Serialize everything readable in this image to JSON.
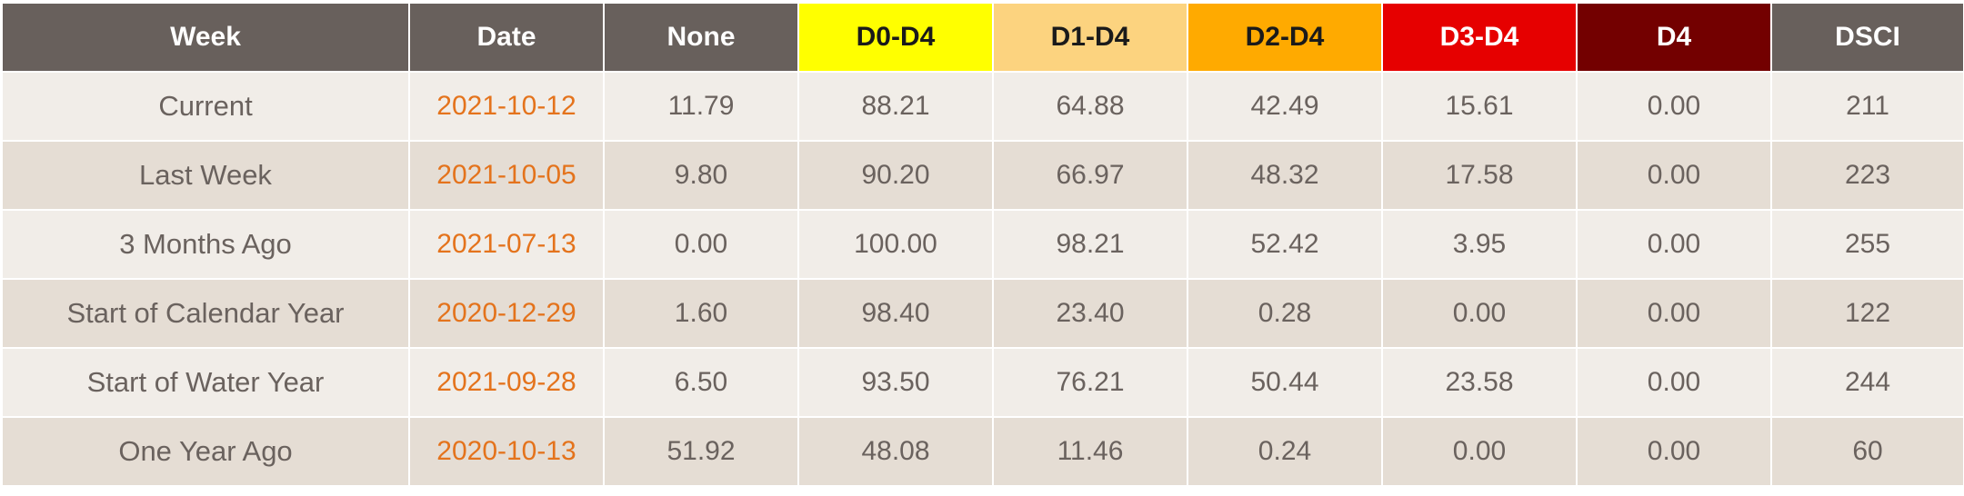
{
  "table": {
    "headers": {
      "week": "Week",
      "date": "Date",
      "none": "None",
      "d0_d4": "D0-D4",
      "d1_d4": "D1-D4",
      "d2_d4": "D2-D4",
      "d3_d4": "D3-D4",
      "d4": "D4",
      "dsci": "DSCI"
    },
    "header_colors": {
      "default": "#68605c",
      "d0_d4": "#ffff00",
      "d1_d4": "#fcd37f",
      "d2_d4": "#ffaa00",
      "d3_d4": "#e60000",
      "d4": "#730000"
    },
    "date_color": "#e4731c",
    "rows": [
      {
        "week": "Current",
        "date": "2021-10-12",
        "none": "11.79",
        "d0_d4": "88.21",
        "d1_d4": "64.88",
        "d2_d4": "42.49",
        "d3_d4": "15.61",
        "d4": "0.00",
        "dsci": "211"
      },
      {
        "week": "Last Week",
        "date": "2021-10-05",
        "none": "9.80",
        "d0_d4": "90.20",
        "d1_d4": "66.97",
        "d2_d4": "48.32",
        "d3_d4": "17.58",
        "d4": "0.00",
        "dsci": "223"
      },
      {
        "week": "3 Months Ago",
        "date": "2021-07-13",
        "none": "0.00",
        "d0_d4": "100.00",
        "d1_d4": "98.21",
        "d2_d4": "52.42",
        "d3_d4": "3.95",
        "d4": "0.00",
        "dsci": "255"
      },
      {
        "week": "Start of Calendar Year",
        "date": "2020-12-29",
        "none": "1.60",
        "d0_d4": "98.40",
        "d1_d4": "23.40",
        "d2_d4": "0.28",
        "d3_d4": "0.00",
        "d4": "0.00",
        "dsci": "122"
      },
      {
        "week": "Start of Water Year",
        "date": "2021-09-28",
        "none": "6.50",
        "d0_d4": "93.50",
        "d1_d4": "76.21",
        "d2_d4": "50.44",
        "d3_d4": "23.58",
        "d4": "0.00",
        "dsci": "244"
      },
      {
        "week": "One Year Ago",
        "date": "2020-10-13",
        "none": "51.92",
        "d0_d4": "48.08",
        "d1_d4": "11.46",
        "d2_d4": "0.24",
        "d3_d4": "0.00",
        "d4": "0.00",
        "dsci": "60"
      }
    ]
  }
}
